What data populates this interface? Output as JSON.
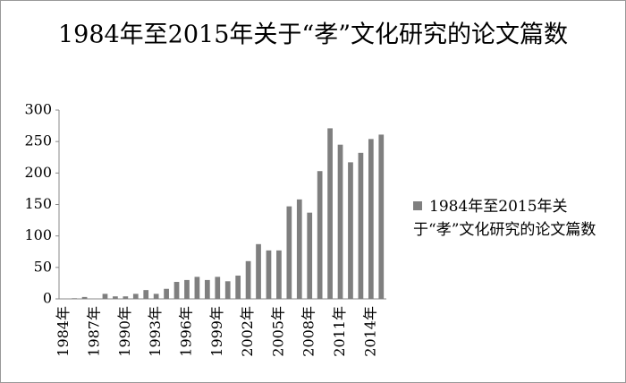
{
  "chart_data": {
    "type": "bar",
    "title": "1984年至2015年关于“孝”文化研究的论文篇数",
    "categories": [
      "1984年",
      null,
      null,
      "1987年",
      null,
      null,
      "1990年",
      null,
      null,
      "1993年",
      null,
      null,
      "1996年",
      null,
      null,
      "1999年",
      null,
      null,
      "2002年",
      null,
      null,
      "2005年",
      null,
      null,
      "2008年",
      null,
      null,
      "2011年",
      null,
      null,
      "2014年",
      null
    ],
    "series": [
      {
        "name": "1984年至2015年关于“孝”文化研究的论文篇数",
        "color": "#7f7f7f",
        "values": [
          0,
          1,
          3,
          0,
          8,
          4,
          4,
          8,
          14,
          8,
          16,
          27,
          30,
          35,
          30,
          35,
          28,
          37,
          60,
          87,
          77,
          77,
          147,
          158,
          137,
          203,
          271,
          245,
          217,
          232,
          254,
          261
        ]
      }
    ],
    "ylim": [
      0,
      300
    ],
    "yticks": [
      0,
      50,
      100,
      150,
      200,
      250,
      300
    ],
    "grid": false,
    "legend": "right"
  }
}
